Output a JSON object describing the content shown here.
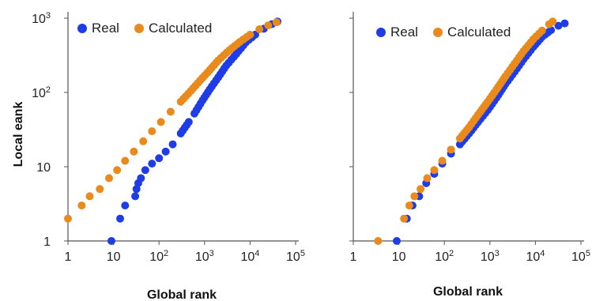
{
  "chart_data": [
    {
      "type": "scatter",
      "xlabel": "Global rank",
      "ylabel": "Local eank",
      "xscale": "log",
      "yscale": "log",
      "xlim": [
        1,
        100000
      ],
      "ylim": [
        1,
        1000
      ],
      "x_tick_labels": [
        "1",
        "10",
        "10²",
        "10³",
        "10⁴",
        "10⁵"
      ],
      "y_tick_labels": [
        "1",
        "10",
        "10²",
        "10³"
      ],
      "legend_position": "top-left",
      "series": [
        {
          "name": "Real",
          "color": "#1f3de6",
          "points": [
            [
              9,
              1
            ],
            [
              14,
              2
            ],
            [
              18,
              3
            ],
            [
              30,
              4
            ],
            [
              32,
              5
            ],
            [
              35,
              6
            ],
            [
              40,
              7
            ],
            [
              50,
              9
            ],
            [
              70,
              11
            ],
            [
              100,
              13
            ],
            [
              140,
              16
            ],
            [
              200,
              20
            ],
            [
              300,
              28
            ],
            [
              450,
              40
            ],
            [
              600,
              52
            ],
            [
              900,
              78
            ],
            [
              1300,
              110
            ],
            [
              2000,
              160
            ],
            [
              3000,
              230
            ],
            [
              5000,
              330
            ],
            [
              8000,
              470
            ],
            [
              13000,
              600
            ],
            [
              20000,
              720
            ],
            [
              30000,
              830
            ],
            [
              40000,
              900
            ]
          ]
        },
        {
          "name": "Calculated",
          "color": "#e98a1c",
          "points": [
            [
              1,
              2
            ],
            [
              2,
              3
            ],
            [
              3,
              4
            ],
            [
              5,
              5
            ],
            [
              8,
              7
            ],
            [
              12,
              9
            ],
            [
              18,
              12
            ],
            [
              28,
              16
            ],
            [
              45,
              22
            ],
            [
              70,
              30
            ],
            [
              110,
              40
            ],
            [
              180,
              55
            ],
            [
              300,
              75
            ],
            [
              500,
              105
            ],
            [
              800,
              145
            ],
            [
              1300,
              200
            ],
            [
              2000,
              270
            ],
            [
              3500,
              370
            ],
            [
              6000,
              480
            ],
            [
              10000,
              600
            ],
            [
              16000,
              710
            ],
            [
              25000,
              800
            ],
            [
              38000,
              880
            ]
          ]
        }
      ]
    },
    {
      "type": "scatter",
      "xlabel": "Global rank",
      "ylabel": "",
      "xscale": "log",
      "yscale": "log",
      "xlim": [
        1,
        100000
      ],
      "ylim": [
        1,
        1000
      ],
      "x_tick_labels": [
        "1",
        "10",
        "10²",
        "10³",
        "10⁴",
        "10⁵"
      ],
      "y_tick_labels": [],
      "legend_position": "top-left",
      "series": [
        {
          "name": "Real",
          "color": "#1f3de6",
          "points": [
            [
              9,
              1
            ],
            [
              15,
              2
            ],
            [
              20,
              3
            ],
            [
              28,
              4
            ],
            [
              40,
              6
            ],
            [
              60,
              8
            ],
            [
              90,
              11
            ],
            [
              140,
              15
            ],
            [
              220,
              20
            ],
            [
              350,
              28
            ],
            [
              550,
              40
            ],
            [
              900,
              58
            ],
            [
              1400,
              85
            ],
            [
              2200,
              130
            ],
            [
              3500,
              190
            ],
            [
              5500,
              280
            ],
            [
              9000,
              410
            ],
            [
              14000,
              560
            ],
            [
              22000,
              690
            ],
            [
              32000,
              790
            ],
            [
              44000,
              850
            ]
          ]
        },
        {
          "name": "Calculated",
          "color": "#e98a1c",
          "points": [
            [
              3.5,
              1
            ],
            [
              13,
              2
            ],
            [
              17,
              3
            ],
            [
              22,
              4
            ],
            [
              30,
              5
            ],
            [
              42,
              7
            ],
            [
              60,
              9
            ],
            [
              90,
              12
            ],
            [
              140,
              17
            ],
            [
              220,
              24
            ],
            [
              350,
              34
            ],
            [
              550,
              50
            ],
            [
              900,
              75
            ],
            [
              1400,
              110
            ],
            [
              2200,
              165
            ],
            [
              3500,
              245
            ],
            [
              5500,
              360
            ],
            [
              9000,
              520
            ],
            [
              14000,
              680
            ],
            [
              20000,
              830
            ],
            [
              24000,
              900
            ]
          ]
        }
      ]
    }
  ]
}
